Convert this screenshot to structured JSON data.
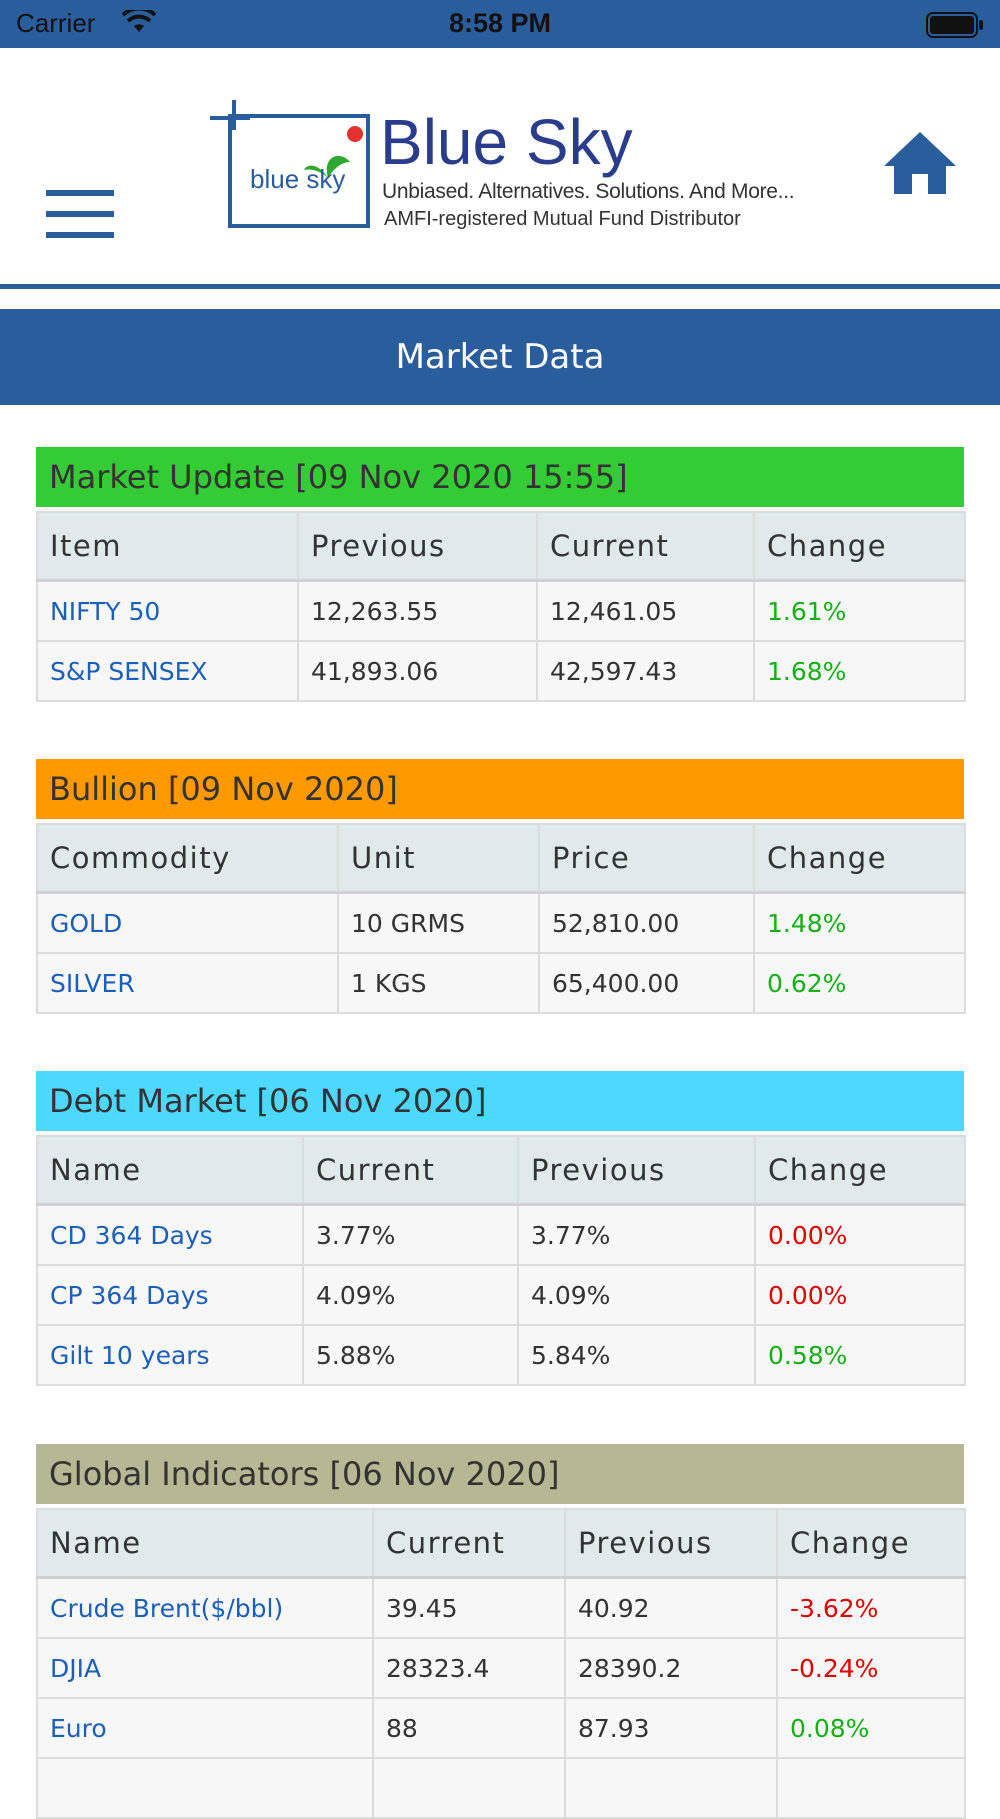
{
  "status_bar": {
    "carrier": "Carrier",
    "time": "8:58 PM"
  },
  "header": {
    "logo_title": "Blue Sky",
    "logo_small": "blue sky",
    "tagline": "Unbiased. Alternatives. Solutions. And More...",
    "registration": "AMFI-registered Mutual Fund Distributor",
    "menu_icon": "hamburger-menu-icon",
    "home_icon": "home-icon"
  },
  "page_title": "Market Data",
  "colors": {
    "brand": "#2a5d9c",
    "market_update": "#34cc34",
    "bullion": "#ff9900",
    "debt": "#4dd9fd",
    "global": "#b5b892",
    "positive": "#15b015",
    "negative": "#e00000",
    "link": "#1b5fb8"
  },
  "market_update": {
    "title": "Market Update [09 Nov 2020 15:55]",
    "columns": [
      "Item",
      "Previous",
      "Current",
      "Change"
    ],
    "rows": [
      {
        "item": "NIFTY 50",
        "previous": "12,263.55",
        "current": "12,461.05",
        "change": "1.61%"
      },
      {
        "item": "S&P SENSEX",
        "previous": "41,893.06",
        "current": "42,597.43",
        "change": "1.68%"
      }
    ]
  },
  "bullion": {
    "title": "Bullion [09 Nov 2020]",
    "columns": [
      "Commodity",
      "Unit",
      "Price",
      "Change"
    ],
    "rows": [
      {
        "item": "GOLD",
        "unit": "10 GRMS",
        "price": "52,810.00",
        "change": "1.48%"
      },
      {
        "item": "SILVER",
        "unit": "1 KGS",
        "price": "65,400.00",
        "change": "0.62%"
      }
    ]
  },
  "debt_market": {
    "title": "Debt Market [06 Nov 2020]",
    "columns": [
      "Name",
      "Current",
      "Previous",
      "Change"
    ],
    "rows": [
      {
        "item": "CD 364 Days",
        "current": "3.77%",
        "previous": "3.77%",
        "change": "0.00%"
      },
      {
        "item": "CP 364 Days",
        "current": "4.09%",
        "previous": "4.09%",
        "change": "0.00%"
      },
      {
        "item": "Gilt 10 years",
        "current": "5.88%",
        "previous": "5.84%",
        "change": "0.58%"
      }
    ]
  },
  "global_indicators": {
    "title": "Global Indicators [06 Nov 2020]",
    "columns": [
      "Name",
      "Current",
      "Previous",
      "Change"
    ],
    "rows": [
      {
        "item": "Crude Brent($/bbl)",
        "current": "39.45",
        "previous": "40.92",
        "change": "-3.62%"
      },
      {
        "item": "DJIA",
        "current": "28323.4",
        "previous": "28390.2",
        "change": "-0.24%"
      },
      {
        "item": "Euro",
        "current": "88",
        "previous": "87.93",
        "change": "0.08%"
      }
    ]
  }
}
